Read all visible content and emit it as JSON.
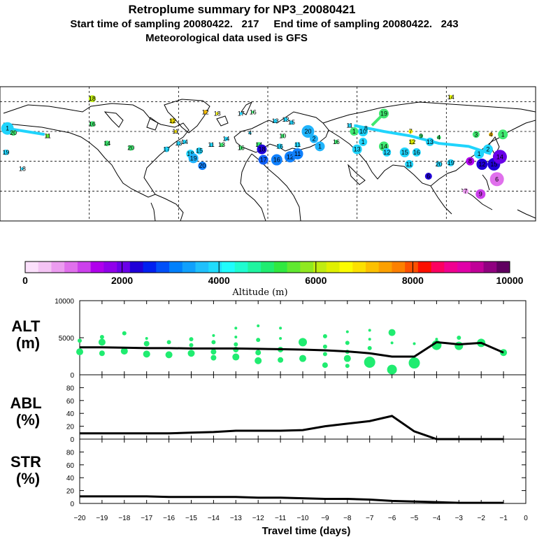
{
  "header": {
    "title": "Retroplume summary for NP3_20080421",
    "sampling": "Start time of sampling 20080422.   217     End time of sampling 20080422.   243",
    "met": "Meteorological data used is GFS"
  },
  "colorbar": {
    "ticks": [
      "0",
      "2000",
      "4000",
      "6000",
      "8000",
      "10000"
    ],
    "label": "Altitude  (m)",
    "colors": [
      "#fbe0fb",
      "#f4c4f4",
      "#ec9cf0",
      "#e070ec",
      "#cc40ec",
      "#b000ec",
      "#9000ea",
      "#6a00e8",
      "#2000d8",
      "#0020f0",
      "#0050f8",
      "#0080fc",
      "#10a0fc",
      "#20c0fc",
      "#20dcfc",
      "#20fcfc",
      "#20fcd0",
      "#20f4a0",
      "#20ec70",
      "#30e840",
      "#60e830",
      "#90e820",
      "#c0ec10",
      "#e0f000",
      "#fcfc00",
      "#fce000",
      "#fcc000",
      "#fca000",
      "#fc8000",
      "#fc5000",
      "#fc1000",
      "#fc0060",
      "#f00090",
      "#e000a8",
      "#c00098",
      "#900080",
      "#600060"
    ]
  },
  "map": {
    "markers": [
      {
        "label": "1",
        "lon": -175,
        "lat": 62,
        "c": "#20d4fc",
        "r": 9
      },
      {
        "label": "20",
        "lon": -171,
        "lat": 59,
        "c": "#40e870",
        "r": 4
      },
      {
        "label": "19",
        "lon": -176,
        "lat": 46,
        "c": "#20d4fc",
        "r": 4
      },
      {
        "label": "18",
        "lon": -165,
        "lat": 35,
        "c": "#20d4fc",
        "r": 2
      },
      {
        "label": "11",
        "lon": -148,
        "lat": 57,
        "c": "#60e830",
        "r": 3
      },
      {
        "label": "18",
        "lon": -118,
        "lat": 82,
        "c": "#c0ec10",
        "r": 5
      },
      {
        "label": "16",
        "lon": -118,
        "lat": 65,
        "c": "#40e870",
        "r": 4
      },
      {
        "label": "14",
        "lon": -108,
        "lat": 52,
        "c": "#40e870",
        "r": 4
      },
      {
        "label": "20",
        "lon": -92,
        "lat": 49,
        "c": "#40e870",
        "r": 4
      },
      {
        "label": "12",
        "lon": -64,
        "lat": 67,
        "c": "#e0d000",
        "r": 4
      },
      {
        "label": "11",
        "lon": -62,
        "lat": 60,
        "c": "#e0d000",
        "r": 2
      },
      {
        "label": "17",
        "lon": -68,
        "lat": 48,
        "c": "#20d4fc",
        "r": 4
      },
      {
        "label": "18",
        "lon": -52,
        "lat": 45,
        "c": "#20d4fc",
        "r": 6
      },
      {
        "label": "19",
        "lon": -50,
        "lat": 42,
        "c": "#20b4fc",
        "r": 7
      },
      {
        "label": "15",
        "lon": -46,
        "lat": 47,
        "c": "#20d4fc",
        "r": 5
      },
      {
        "label": "20",
        "lon": -44,
        "lat": 37,
        "c": "#1080fc",
        "r": 6
      },
      {
        "label": "13",
        "lon": -60,
        "lat": 52,
        "c": "#20d4fc",
        "r": 3
      },
      {
        "label": "14",
        "lon": -56,
        "lat": 53,
        "c": "#20d4fc",
        "r": 3
      },
      {
        "label": "11",
        "lon": -38,
        "lat": 51,
        "c": "#20d4fc",
        "r": 3
      },
      {
        "label": "13",
        "lon": -31,
        "lat": 51,
        "c": "#40e870",
        "r": 3
      },
      {
        "label": "14",
        "lon": -28,
        "lat": 55,
        "c": "#20d4fc",
        "r": 3
      },
      {
        "label": "16",
        "lon": -18,
        "lat": 49,
        "c": "#40e870",
        "r": 3
      },
      {
        "label": "4",
        "lon": -12,
        "lat": 59,
        "c": "#20d4fc",
        "r": 2
      },
      {
        "label": "14",
        "lon": -6,
        "lat": 51,
        "c": "#40e870",
        "r": 4
      },
      {
        "label": "16",
        "lon": 8,
        "lat": 50,
        "c": "#20d4fc",
        "r": 4
      },
      {
        "label": "10",
        "lon": 10,
        "lat": 57,
        "c": "#40e870",
        "r": 3
      },
      {
        "label": "11",
        "lon": 20,
        "lat": 51,
        "c": "#20d4fc",
        "r": 4
      },
      {
        "label": "17",
        "lon": -3,
        "lat": 41,
        "c": "#1060f8",
        "r": 7
      },
      {
        "label": "18",
        "lon": -4,
        "lat": 48,
        "c": "#2000d8",
        "r": 7
      },
      {
        "label": "16",
        "lon": 6,
        "lat": 41,
        "c": "#1080fc",
        "r": 8
      },
      {
        "label": "12",
        "lon": 15,
        "lat": 43,
        "c": "#1080fc",
        "r": 8
      },
      {
        "label": "11",
        "lon": 20,
        "lat": 45,
        "c": "#1080fc",
        "r": 8
      },
      {
        "label": "20",
        "lon": 27,
        "lat": 60,
        "c": "#20b4fc",
        "r": 9
      },
      {
        "label": "2",
        "lon": 31,
        "lat": 55,
        "c": "#20b4fc",
        "r": 6
      },
      {
        "label": "1",
        "lon": 35,
        "lat": 50,
        "c": "#20b4fc",
        "r": 7
      },
      {
        "label": "12",
        "lon": -42,
        "lat": 73,
        "c": "#fcc000",
        "r": 3
      },
      {
        "label": "18",
        "lon": -34,
        "lat": 72,
        "c": "#fcfc00",
        "r": 2
      },
      {
        "label": "17",
        "lon": -18,
        "lat": 72,
        "c": "#20d4fc",
        "r": 2
      },
      {
        "label": "16",
        "lon": -10,
        "lat": 73,
        "c": "#40e870",
        "r": 2
      },
      {
        "label": "13",
        "lon": 5,
        "lat": 67,
        "c": "#20d4fc",
        "r": 3
      },
      {
        "label": "13",
        "lon": 12,
        "lat": 68,
        "c": "#20d4fc",
        "r": 3
      },
      {
        "label": "15",
        "lon": 16,
        "lat": 66,
        "c": "#20d4fc",
        "r": 3
      },
      {
        "label": "16",
        "lon": 46,
        "lat": 53,
        "c": "#40e870",
        "r": 3
      },
      {
        "label": "11",
        "lon": 55,
        "lat": 64,
        "c": "#20d4fc",
        "r": 3
      },
      {
        "label": "1",
        "lon": 58,
        "lat": 60,
        "c": "#40e870",
        "r": 6
      },
      {
        "label": "10",
        "lon": 64,
        "lat": 60,
        "c": "#20d4fc",
        "r": 7
      },
      {
        "label": "1",
        "lon": 64,
        "lat": 53,
        "c": "#20d4fc",
        "r": 6
      },
      {
        "label": "13",
        "lon": 60,
        "lat": 48,
        "c": "#20d4fc",
        "r": 7
      },
      {
        "label": "19",
        "lon": 78,
        "lat": 72,
        "c": "#40e870",
        "r": 7
      },
      {
        "label": "14",
        "lon": 78,
        "lat": 50,
        "c": "#40e870",
        "r": 7
      },
      {
        "label": "12",
        "lon": 80,
        "lat": 46,
        "c": "#20d4fc",
        "r": 6
      },
      {
        "label": "8",
        "lon": 66,
        "lat": 62,
        "c": "#20d4fc",
        "r": 3
      },
      {
        "label": "7",
        "lon": 96,
        "lat": 60,
        "c": "#fcfc00",
        "r": 3
      },
      {
        "label": "12",
        "lon": 97,
        "lat": 53,
        "c": "#e0f000",
        "r": 4
      },
      {
        "label": "9",
        "lon": 103,
        "lat": 57,
        "c": "#40e870",
        "r": 3
      },
      {
        "label": "15",
        "lon": 92,
        "lat": 46,
        "c": "#20d4fc",
        "r": 7
      },
      {
        "label": "16",
        "lon": 100,
        "lat": 46,
        "c": "#20d4fc",
        "r": 6
      },
      {
        "label": "11",
        "lon": 95,
        "lat": 38,
        "c": "#20d4fc",
        "r": 6
      },
      {
        "label": "13",
        "lon": 109,
        "lat": 53,
        "c": "#20d4fc",
        "r": 6
      },
      {
        "label": "4",
        "lon": 115,
        "lat": 56,
        "c": "#40e870",
        "r": 3
      },
      {
        "label": "20",
        "lon": 115,
        "lat": 38,
        "c": "#20d4fc",
        "r": 4
      },
      {
        "label": "19",
        "lon": 123,
        "lat": 39,
        "c": "#20d4fc",
        "r": 5
      },
      {
        "label": "6",
        "lon": 108,
        "lat": 30,
        "c": "#2000d8",
        "r": 5
      },
      {
        "label": "14",
        "lon": 123,
        "lat": 83,
        "c": "#e0f000",
        "r": 3
      },
      {
        "label": "7",
        "lon": 133,
        "lat": 20,
        "c": "#ec9cf0",
        "r": 4
      },
      {
        "label": "9",
        "lon": 143,
        "lat": 18,
        "c": "#cc40ec",
        "r": 7
      },
      {
        "label": "8",
        "lon": 136,
        "lat": 40,
        "c": "#b000ec",
        "r": 6
      },
      {
        "label": "3",
        "lon": 140,
        "lat": 58,
        "c": "#40e870",
        "r": 5
      },
      {
        "label": "1",
        "lon": 142,
        "lat": 45,
        "c": "#20d4fc",
        "r": 7
      },
      {
        "label": "2",
        "lon": 148,
        "lat": 48,
        "c": "#20d4fc",
        "r": 7
      },
      {
        "label": "12",
        "lon": 144,
        "lat": 38,
        "c": "#2000d8",
        "r": 8
      },
      {
        "label": "15",
        "lon": 152,
        "lat": 38,
        "c": "#2000d8",
        "r": 9
      },
      {
        "label": "6",
        "lon": 154,
        "lat": 28,
        "c": "#e070ec",
        "r": 10
      },
      {
        "label": "14",
        "lon": 156,
        "lat": 43,
        "c": "#6a00e8",
        "r": 10
      },
      {
        "label": "1",
        "lon": 158,
        "lat": 58,
        "c": "#40e870",
        "r": 7
      },
      {
        "label": "4",
        "lon": 150,
        "lat": 58,
        "c": "#fcc000",
        "r": 3
      }
    ],
    "tracks": [
      {
        "pts": [
          [
            -175,
            62
          ],
          [
            -150,
            58
          ]
        ],
        "c": "#20d4fc"
      },
      {
        "pts": [
          [
            58,
            64
          ],
          [
            78,
            60
          ],
          [
            96,
            57
          ],
          [
            115,
            52
          ],
          [
            135,
            50
          ],
          [
            150,
            45
          ]
        ],
        "c": "#20d4fc"
      },
      {
        "pts": [
          [
            78,
            72
          ],
          [
            70,
            64
          ]
        ],
        "c": "#40e870"
      }
    ]
  },
  "chart_data": [
    {
      "type": "scatter+line",
      "panel": "ALT",
      "ylabel": "ALT\n(m)",
      "ylim": [
        0,
        10000
      ],
      "yticks": [
        "0",
        "5000",
        "10000"
      ],
      "xlim": [
        -20,
        0
      ],
      "line": [
        [
          -20,
          3700
        ],
        [
          -19,
          3700
        ],
        [
          -18,
          3650
        ],
        [
          -17,
          3600
        ],
        [
          -16,
          3600
        ],
        [
          -15,
          3550
        ],
        [
          -14,
          3550
        ],
        [
          -13,
          3550
        ],
        [
          -12,
          3500
        ],
        [
          -11,
          3450
        ],
        [
          -10,
          3400
        ],
        [
          -9,
          3300
        ],
        [
          -8,
          3150
        ],
        [
          -7,
          2900
        ],
        [
          -6,
          2450
        ],
        [
          -5,
          2450
        ],
        [
          -4,
          4400
        ],
        [
          -3,
          4100
        ],
        [
          -2,
          4300
        ],
        [
          -1,
          3000
        ]
      ],
      "points": [
        [
          -20,
          4600,
          3
        ],
        [
          -20,
          3100,
          5
        ],
        [
          -19,
          5100,
          3
        ],
        [
          -19,
          4400,
          5
        ],
        [
          -19,
          2900,
          4
        ],
        [
          -18,
          5600,
          3
        ],
        [
          -18,
          3200,
          5
        ],
        [
          -17,
          4900,
          2
        ],
        [
          -17,
          4200,
          4
        ],
        [
          -17,
          2800,
          5
        ],
        [
          -16,
          4400,
          3
        ],
        [
          -16,
          2700,
          5
        ],
        [
          -15,
          4800,
          3
        ],
        [
          -15,
          4000,
          3
        ],
        [
          -15,
          2900,
          5
        ],
        [
          -14,
          5300,
          2
        ],
        [
          -14,
          4400,
          3
        ],
        [
          -14,
          3100,
          4
        ],
        [
          -14,
          2300,
          4
        ],
        [
          -13,
          6300,
          2
        ],
        [
          -13,
          5100,
          2
        ],
        [
          -13,
          4100,
          3
        ],
        [
          -13,
          3400,
          4
        ],
        [
          -13,
          2400,
          5
        ],
        [
          -12,
          6600,
          2
        ],
        [
          -12,
          4700,
          3
        ],
        [
          -12,
          3000,
          4
        ],
        [
          -12,
          1900,
          5
        ],
        [
          -11,
          6300,
          2
        ],
        [
          -11,
          4900,
          2
        ],
        [
          -11,
          3400,
          4
        ],
        [
          -11,
          2000,
          4
        ],
        [
          -10,
          4400,
          6
        ],
        [
          -10,
          2200,
          5
        ],
        [
          -9,
          5200,
          3
        ],
        [
          -9,
          3800,
          3
        ],
        [
          -9,
          2800,
          3
        ],
        [
          -9,
          1300,
          4
        ],
        [
          -8,
          5800,
          2
        ],
        [
          -8,
          4300,
          3
        ],
        [
          -8,
          3100,
          3
        ],
        [
          -8,
          2200,
          5
        ],
        [
          -8,
          1200,
          3
        ],
        [
          -7,
          6000,
          2
        ],
        [
          -7,
          4800,
          2
        ],
        [
          -7,
          3600,
          3
        ],
        [
          -7,
          1700,
          8
        ],
        [
          -6,
          5700,
          5
        ],
        [
          -6,
          4300,
          2
        ],
        [
          -6,
          700,
          7
        ],
        [
          -5,
          4200,
          2
        ],
        [
          -5,
          1600,
          8
        ],
        [
          -4,
          4800,
          2
        ],
        [
          -4,
          4000,
          7
        ],
        [
          -3,
          5000,
          3
        ],
        [
          -3,
          3900,
          6
        ],
        [
          -2,
          4300,
          6
        ],
        [
          -1,
          3000,
          5
        ]
      ]
    },
    {
      "type": "line",
      "panel": "ABL",
      "ylabel": "ABL\n(%)",
      "ylim": [
        0,
        100
      ],
      "yticks": [
        "0",
        "20",
        "40",
        "60",
        "80"
      ],
      "line": [
        [
          -20,
          9
        ],
        [
          -19,
          9
        ],
        [
          -18,
          9
        ],
        [
          -17,
          9
        ],
        [
          -16,
          9
        ],
        [
          -15,
          10
        ],
        [
          -14,
          11
        ],
        [
          -13,
          13
        ],
        [
          -12,
          13
        ],
        [
          -11,
          13
        ],
        [
          -10,
          14
        ],
        [
          -9,
          20
        ],
        [
          -8,
          24
        ],
        [
          -7,
          28
        ],
        [
          -6,
          36
        ],
        [
          -5,
          12
        ],
        [
          -4,
          0
        ],
        [
          -3,
          0
        ],
        [
          -2,
          0
        ],
        [
          -1,
          0
        ]
      ]
    },
    {
      "type": "line",
      "panel": "STR",
      "ylabel": "STR\n(%)",
      "ylim": [
        0,
        100
      ],
      "yticks": [
        "0",
        "20",
        "40",
        "60",
        "80"
      ],
      "xlabel": "Travel time (days)",
      "xticks": [
        "−20",
        "−19",
        "−18",
        "−17",
        "−16",
        "−15",
        "−14",
        "−13",
        "−12",
        "−11",
        "−10",
        "−9",
        "−8",
        "−7",
        "−6",
        "−5",
        "−4",
        "−3",
        "−2",
        "−1",
        "0"
      ],
      "line": [
        [
          -20,
          11
        ],
        [
          -19,
          11
        ],
        [
          -18,
          11
        ],
        [
          -17,
          11
        ],
        [
          -16,
          10
        ],
        [
          -15,
          10
        ],
        [
          -14,
          10
        ],
        [
          -13,
          10
        ],
        [
          -12,
          9
        ],
        [
          -11,
          9
        ],
        [
          -10,
          8
        ],
        [
          -9,
          7
        ],
        [
          -8,
          7
        ],
        [
          -7,
          6
        ],
        [
          -6,
          4
        ],
        [
          -5,
          3
        ],
        [
          -4,
          2
        ],
        [
          -3,
          1
        ],
        [
          -2,
          1
        ],
        [
          -1,
          1
        ]
      ]
    }
  ]
}
